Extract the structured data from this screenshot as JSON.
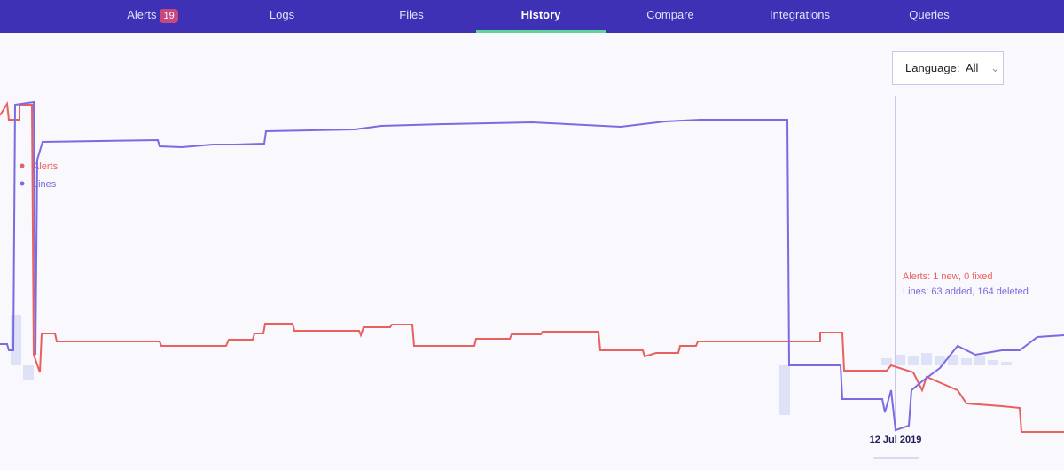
{
  "nav": {
    "items": [
      {
        "label": "Alerts",
        "badge": 19
      },
      {
        "label": "Logs"
      },
      {
        "label": "Files"
      },
      {
        "label": "History"
      },
      {
        "label": "Compare"
      },
      {
        "label": "Integrations"
      },
      {
        "label": "Queries"
      }
    ],
    "active": 3
  },
  "filter": {
    "label": "Language:",
    "value": "All"
  },
  "chart_data": {
    "type": "line",
    "xlim": [
      0,
      1200
    ],
    "ylim": [
      0,
      400
    ],
    "series": [
      {
        "name": "Alerts",
        "color": "#e8615f",
        "x": [
          0,
          8,
          10,
          22,
          22,
          36,
          38,
          45,
          47,
          62,
          64,
          180,
          182,
          255,
          258,
          285,
          287,
          297,
          299,
          330,
          332,
          405,
          407,
          410,
          440,
          442,
          465,
          467,
          535,
          537,
          575,
          577,
          610,
          612,
          675,
          677,
          725,
          727,
          740,
          765,
          767,
          785,
          787,
          925,
          925,
          950,
          952,
          1000,
          1005,
          1030,
          1040,
          1045,
          1080,
          1090,
          1130,
          1150,
          1152,
          1200
        ],
        "values": [
          350,
          363,
          345,
          345,
          362,
          362,
          80,
          60,
          104,
          104,
          95,
          95,
          90,
          90,
          97,
          97,
          104,
          104,
          115,
          115,
          107,
          107,
          102,
          111,
          111,
          114,
          114,
          90,
          90,
          98,
          98,
          103,
          103,
          106,
          106,
          85,
          85,
          78,
          82,
          82,
          90,
          90,
          95,
          95,
          105,
          105,
          62,
          62,
          68,
          60,
          40,
          55,
          40,
          25,
          22,
          20,
          -7,
          -7
        ]
      },
      {
        "name": "Lines",
        "color": "#7b6be0",
        "x": [
          0,
          8,
          10,
          15,
          17,
          38,
          40,
          42,
          48,
          178,
          180,
          205,
          240,
          265,
          298,
          300,
          400,
          430,
          500,
          600,
          700,
          750,
          790,
          888,
          890,
          948,
          950,
          995,
          998,
          1005,
          1010,
          1025,
          1028,
          1040,
          1060,
          1080,
          1100,
          1130,
          1150,
          1170,
          1200
        ],
        "values": [
          92,
          92,
          85,
          85,
          362,
          365,
          80,
          300,
          320,
          322,
          315,
          314,
          317,
          317,
          318,
          332,
          334,
          338,
          340,
          342,
          337,
          343,
          345,
          345,
          68,
          68,
          30,
          30,
          15,
          40,
          -5,
          0,
          40,
          50,
          65,
          90,
          80,
          85,
          85,
          100,
          102
        ]
      }
    ],
    "bars": {
      "color": "#dde2f6",
      "base": 68,
      "x": [
        18,
        32,
        885,
        1000,
        1015,
        1030,
        1045,
        1060,
        1075,
        1090,
        1105,
        1120,
        1135
      ],
      "values": [
        57,
        -16,
        -56,
        8,
        12,
        10,
        14,
        10,
        12,
        8,
        10,
        6,
        4
      ]
    },
    "hover": {
      "x": 1010,
      "label": "12 Jul 2019"
    },
    "annotations": [
      "Alerts: 1 new, 0 fixed",
      "Lines: 63 added, 164 deleted"
    ]
  }
}
